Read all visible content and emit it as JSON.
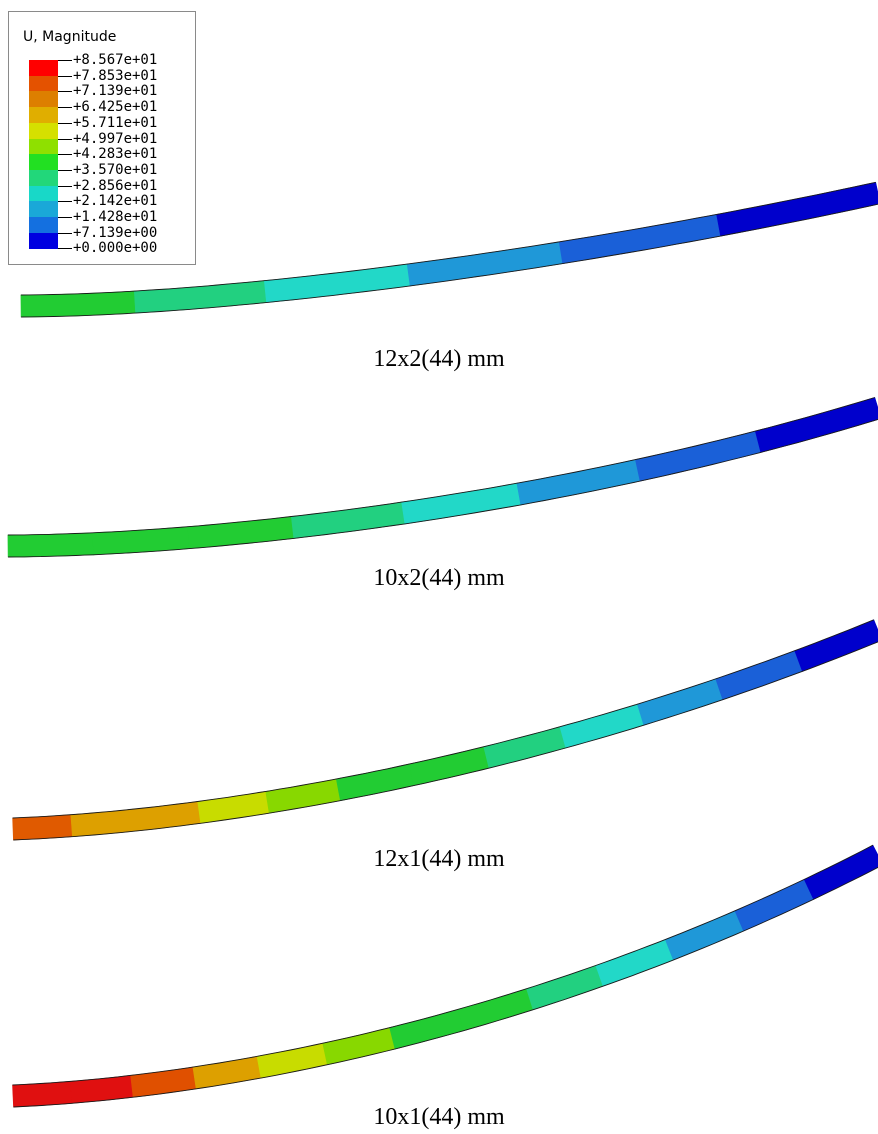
{
  "legend": {
    "title": "U, Magnitude",
    "labels": [
      "+8.567e+01",
      "+7.853e+01",
      "+7.139e+01",
      "+6.425e+01",
      "+5.711e+01",
      "+4.997e+01",
      "+4.283e+01",
      "+3.570e+01",
      "+2.856e+01",
      "+2.142e+01",
      "+1.428e+01",
      "+7.139e+00",
      "+0.000e+00"
    ],
    "colors": [
      "#ff0000",
      "#e45200",
      "#dd7f00",
      "#e0ae00",
      "#d5e000",
      "#8fe000",
      "#22e022",
      "#22d77a",
      "#18d8c8",
      "#1aa8d8",
      "#1470e0",
      "#0000e0"
    ]
  },
  "beams": [
    {
      "caption": "12x2(44) mm",
      "segments": [
        "#22cc33",
        "#22d080",
        "#22d8c8",
        "#1f98d8",
        "#1a60d8",
        "#0000cc"
      ]
    },
    {
      "caption": "10x2(44) mm",
      "segments": [
        "#22cc33",
        "#22cc33",
        "#22cc33",
        "#22d080",
        "#22d8c8",
        "#1f98d8",
        "#1a60d8",
        "#0000cc"
      ]
    },
    {
      "caption": "12x1(44) mm",
      "segments": [
        "#e05a00",
        "#dda000",
        "#dda000",
        "#c8dc00",
        "#88d800",
        "#22cc33",
        "#22cc33",
        "#22d080",
        "#22d8c8",
        "#1f98d8",
        "#1a60d8",
        "#0000cc"
      ]
    },
    {
      "caption": "10x1(44) mm",
      "segments": [
        "#e01010",
        "#e01010",
        "#e05000",
        "#dda000",
        "#c8dc00",
        "#88d800",
        "#22cc33",
        "#22cc33",
        "#22d080",
        "#22d8c8",
        "#1f98d8",
        "#1a60d8",
        "#0000cc"
      ]
    }
  ]
}
